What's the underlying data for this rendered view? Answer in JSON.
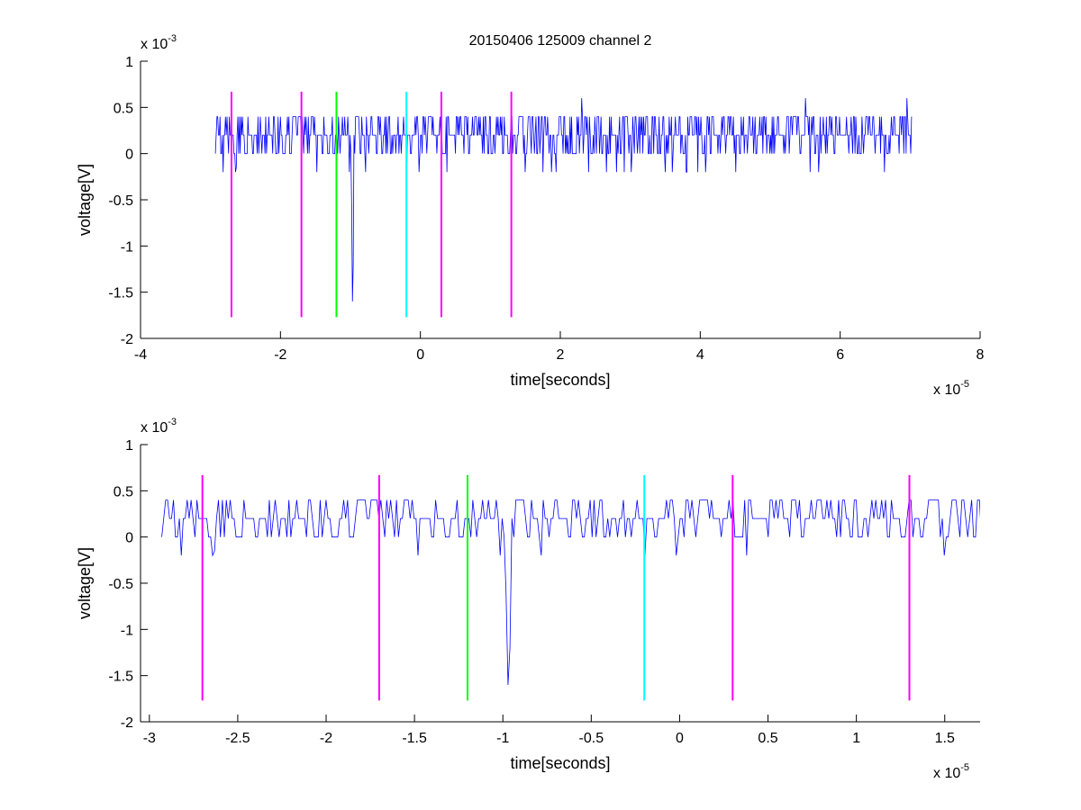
{
  "chart_data": [
    {
      "type": "line",
      "title": "20150406 125009 channel 2",
      "xlabel": "time[seconds]",
      "ylabel": "voltage[V]",
      "x_exponent": "x 10",
      "x_exponent_power": "-5",
      "y_exponent": "x 10",
      "y_exponent_power": "-3",
      "xlim": [
        -4,
        8
      ],
      "ylim": [
        -2,
        1
      ],
      "x_ticks": [
        -4,
        -2,
        0,
        2,
        4,
        6,
        8
      ],
      "x_tick_labels": [
        "-4",
        "-2",
        "0",
        "2",
        "4",
        "6",
        "8"
      ],
      "y_ticks": [
        -2,
        -1.5,
        -1,
        -0.5,
        0,
        0.5,
        1
      ],
      "y_tick_labels": [
        "-2",
        "-1.5",
        "-1",
        "-0.5",
        "0",
        "0.5",
        "1"
      ],
      "grid": false,
      "signal": {
        "color": "#0000ff",
        "x_start": -2.93,
        "x_end": 7.02,
        "baseline": 0.2,
        "step": 0.2,
        "spikes": [
          {
            "x": -0.97,
            "y": -1.6
          },
          {
            "x": -2.64,
            "y": -0.2
          }
        ]
      },
      "vlines": [
        {
          "x": -2.7,
          "y_top": 0.67,
          "y_bottom": -1.77,
          "color": "#ff00ff"
        },
        {
          "x": -1.7,
          "y_top": 0.67,
          "y_bottom": -1.77,
          "color": "#ff00ff"
        },
        {
          "x": -1.2,
          "y_top": 0.67,
          "y_bottom": -1.77,
          "color": "#00ff00"
        },
        {
          "x": -0.2,
          "y_top": 0.67,
          "y_bottom": -1.77,
          "color": "#00ffff"
        },
        {
          "x": 0.3,
          "y_top": 0.67,
          "y_bottom": -1.77,
          "color": "#ff00ff"
        },
        {
          "x": 1.3,
          "y_top": 0.67,
          "y_bottom": -1.77,
          "color": "#ff00ff"
        }
      ]
    },
    {
      "type": "line",
      "title": "",
      "xlabel": "time[seconds]",
      "ylabel": "voltage[V]",
      "x_exponent": "x 10",
      "x_exponent_power": "-5",
      "y_exponent": "x 10",
      "y_exponent_power": "-3",
      "xlim": [
        -3.05,
        1.7
      ],
      "ylim": [
        -2,
        1
      ],
      "x_ticks": [
        -3,
        -2.5,
        -2,
        -1.5,
        -1,
        -0.5,
        0,
        0.5,
        1,
        1.5
      ],
      "x_tick_labels": [
        "-3",
        "-2.5",
        "-2",
        "-1.5",
        "-1",
        "-0.5",
        "0",
        "0.5",
        "1",
        "1.5"
      ],
      "y_ticks": [
        -2,
        -1.5,
        -1,
        -0.5,
        0,
        0.5,
        1
      ],
      "y_tick_labels": [
        "-2",
        "-1.5",
        "-1",
        "-0.5",
        "0",
        "0.5",
        "1"
      ],
      "grid": false,
      "signal": {
        "color": "#0000ff",
        "x_start": -2.93,
        "x_end": 1.7,
        "baseline": 0.2,
        "step": 0.2,
        "spikes": [
          {
            "x": -0.97,
            "y": -1.6
          },
          {
            "x": -2.64,
            "y": -0.2
          }
        ]
      },
      "vlines": [
        {
          "x": -2.7,
          "y_top": 0.67,
          "y_bottom": -1.77,
          "color": "#ff00ff"
        },
        {
          "x": -1.7,
          "y_top": 0.67,
          "y_bottom": -1.77,
          "color": "#ff00ff"
        },
        {
          "x": -1.2,
          "y_top": 0.67,
          "y_bottom": -1.77,
          "color": "#00ff00"
        },
        {
          "x": -0.2,
          "y_top": 0.67,
          "y_bottom": -1.77,
          "color": "#00ffff"
        },
        {
          "x": 0.3,
          "y_top": 0.67,
          "y_bottom": -1.77,
          "color": "#ff00ff"
        },
        {
          "x": 1.3,
          "y_top": 0.67,
          "y_bottom": -1.77,
          "color": "#ff00ff"
        }
      ]
    }
  ]
}
